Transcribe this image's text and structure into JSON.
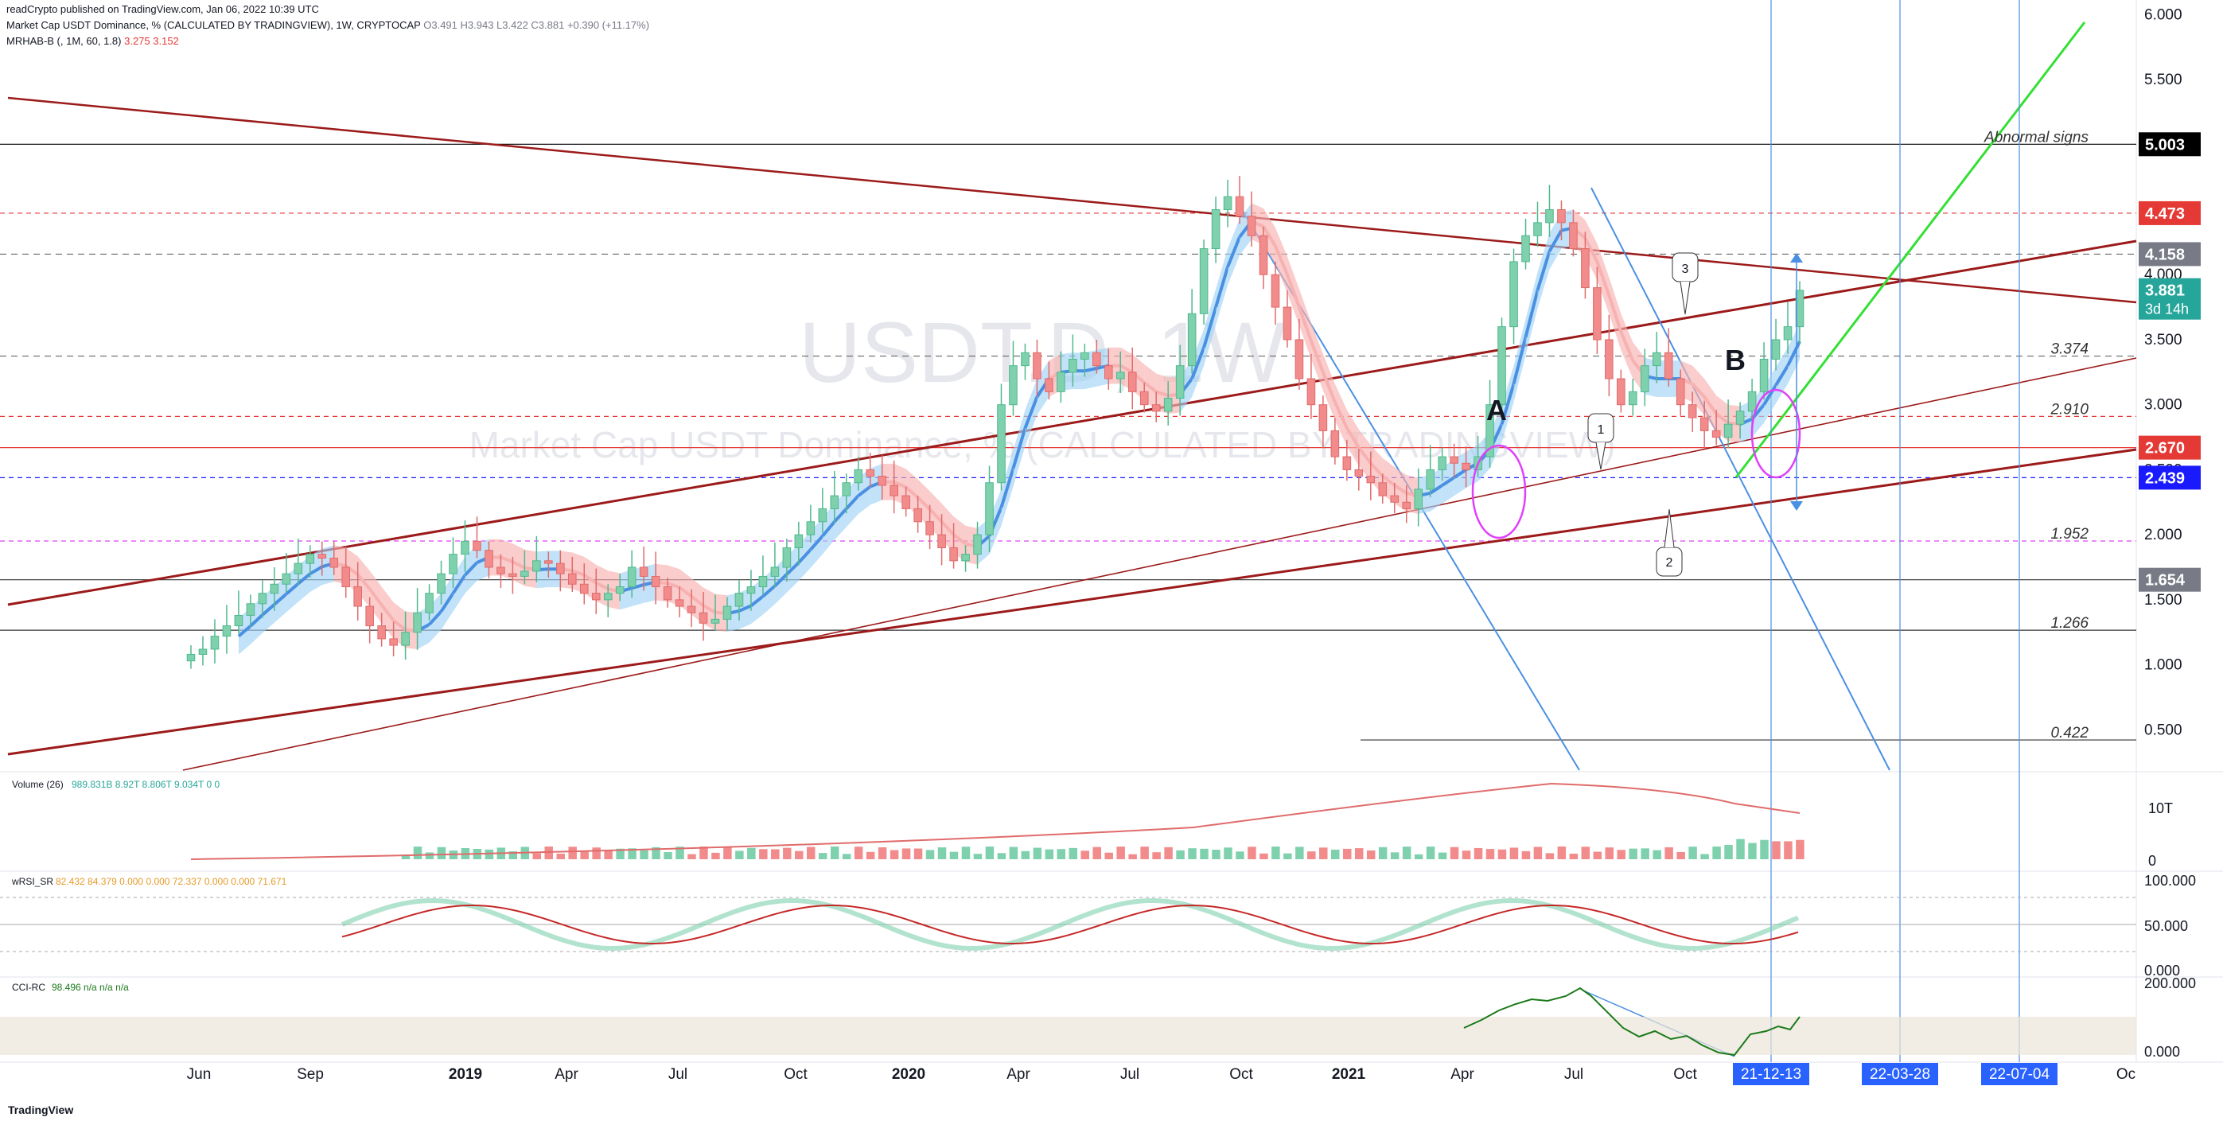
{
  "header": {
    "published": "readCrypto published on TradingView.com, Jan 06, 2022 10:39 UTC",
    "symbol_line": "Market Cap USDT Dominance, % (CALCULATED BY TRADINGVIEW), 1W, CRYPTOCAP",
    "ohlc": "O3.491  H3.943  L3.422  C3.881  +0.390 (+11.17%)",
    "indicator": "MRHAB-B (, 1M, 60, 1.8)",
    "indicator_vals": "3.275  3.152"
  },
  "watermark": {
    "symbol": "USDT.D, 1W",
    "name": "Market Cap USDT Dominance, % (CALCULATED BY TRADINGVIEW)"
  },
  "footer": {
    "logo": "TradingView"
  },
  "colors": {
    "up": "#7fd1ae",
    "down": "#f28b8b",
    "dark_red": "#9c1a1a",
    "blue": "#4a90e2",
    "green": "#33e033",
    "magenta": "#e040fb"
  },
  "chart_data": [
    {
      "type": "candlestick",
      "title": "USDT.D, 1W",
      "x": [
        "2018-06",
        "2018-09",
        "2019-01",
        "2019-04",
        "2019-07",
        "2019-10",
        "2020-01",
        "2020-04",
        "2020-07",
        "2020-10",
        "2021-01",
        "2021-04",
        "2021-07",
        "2021-10",
        "2021-12-13",
        "2022-03-28",
        "2022-07-04"
      ],
      "xlabels": [
        "Jun",
        "Sep",
        "2019",
        "Apr",
        "Jul",
        "Oct",
        "2020",
        "Apr",
        "Jul",
        "Oct",
        "2021",
        "Apr",
        "Jul",
        "Oct",
        "Oc"
      ],
      "ylim": [
        0.3,
        6.1
      ],
      "yticks": [
        "6.000",
        "5.500",
        "5.000",
        "4.500",
        "4.000",
        "3.500",
        "3.000",
        "2.500",
        "2.000",
        "1.500",
        "1.000",
        "0.500"
      ],
      "price_labels": [
        {
          "value": 5.003,
          "text": "5.003",
          "bg": "#000000"
        },
        {
          "value": 4.473,
          "text": "4.473",
          "bg": "#e53935"
        },
        {
          "value": 4.158,
          "text": "4.158",
          "bg": "#787b86"
        },
        {
          "value": 3.881,
          "text": "3.881",
          "bg": "#26a69a",
          "sub": "3d 14h"
        },
        {
          "value": 2.67,
          "text": "2.670",
          "bg": "#e53935"
        },
        {
          "value": 2.439,
          "text": "2.439",
          "bg": "#1a1aff"
        },
        {
          "value": 1.654,
          "text": "1.654",
          "bg": "#787b86"
        }
      ],
      "level_labels": [
        {
          "value": 5.003,
          "text": "Abnormal signs"
        },
        {
          "value": 3.374,
          "text": "3.374"
        },
        {
          "value": 2.91,
          "text": "2.910"
        },
        {
          "value": 1.952,
          "text": "1.952"
        },
        {
          "value": 1.266,
          "text": "1.266"
        },
        {
          "value": 0.422,
          "text": "0.422"
        }
      ],
      "annotations": [
        "A",
        "B",
        "1",
        "2",
        "3"
      ],
      "time_labels": [
        "21-12-13",
        "22-03-28",
        "22-07-04"
      ],
      "closes": [
        1.08,
        1.12,
        1.22,
        1.3,
        1.38,
        1.47,
        1.55,
        1.62,
        1.7,
        1.78,
        1.85,
        1.82,
        1.75,
        1.6,
        1.45,
        1.3,
        1.2,
        1.15,
        1.25,
        1.4,
        1.55,
        1.7,
        1.85,
        1.95,
        1.88,
        1.75,
        1.7,
        1.68,
        1.72,
        1.8,
        1.78,
        1.7,
        1.62,
        1.55,
        1.5,
        1.55,
        1.6,
        1.75,
        1.68,
        1.6,
        1.5,
        1.45,
        1.4,
        1.32,
        1.35,
        1.45,
        1.55,
        1.6,
        1.68,
        1.75,
        1.9,
        2.0,
        2.1,
        2.2,
        2.3,
        2.4,
        2.5,
        2.45,
        2.38,
        2.3,
        2.2,
        2.1,
        2.0,
        1.9,
        1.8,
        1.85,
        2.0,
        2.4,
        3.0,
        3.3,
        3.4,
        3.2,
        3.1,
        3.25,
        3.35,
        3.4,
        3.3,
        3.2,
        3.25,
        3.1,
        3.0,
        2.95,
        3.05,
        3.3,
        3.7,
        4.2,
        4.5,
        4.6,
        4.45,
        4.3,
        4.0,
        3.75,
        3.5,
        3.2,
        3.0,
        2.8,
        2.6,
        2.5,
        2.45,
        2.4,
        2.3,
        2.25,
        2.2,
        2.35,
        2.5,
        2.6,
        2.55,
        2.5,
        2.6,
        3.0,
        3.6,
        4.1,
        4.3,
        4.4,
        4.5,
        4.4,
        4.2,
        3.9,
        3.5,
        3.2,
        3.0,
        3.1,
        3.3,
        3.4,
        3.2,
        3.0,
        2.9,
        2.8,
        2.75,
        2.85,
        2.95,
        3.1,
        3.35,
        3.5,
        3.6,
        3.88
      ]
    },
    {
      "type": "bar",
      "title": "Volume (26)",
      "legend": "989.831B  8.92T  8.806T  9.034T  0  0",
      "ylabels": [
        "10T",
        "0"
      ]
    },
    {
      "type": "line",
      "title": "wRSI_SR",
      "legend": "82.432  84.379  0.000  0.000  72.337  0.000  0.000  71.671",
      "yticks": [
        "100.000",
        "50.000",
        "0.000"
      ]
    },
    {
      "type": "line",
      "title": "CCI-RC",
      "legend": "98.496  n/a  n/a  n/a",
      "yticks": [
        "200.000",
        "0.000"
      ]
    }
  ]
}
